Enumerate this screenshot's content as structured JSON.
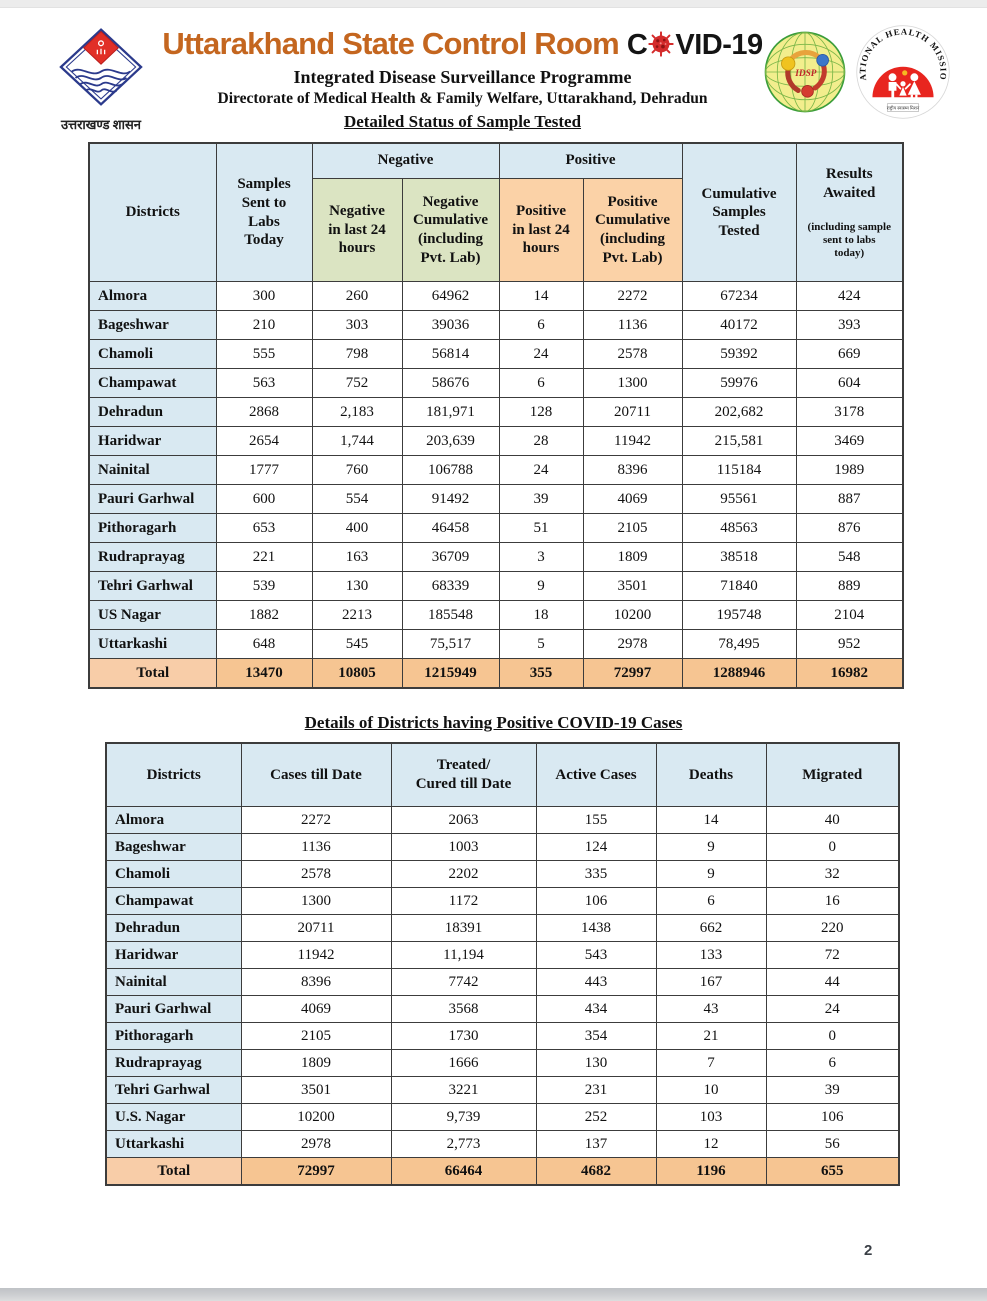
{
  "colors": {
    "title_orange": "#c4661f",
    "header_blue": "#d9e9f2",
    "header_green": "#dbe4c2",
    "header_peach": "#fbd2a7",
    "total_peach": "#f6c592",
    "total_label_peach": "#f8cda8",
    "virus_red": "#d42b2b",
    "nhm_red": "#e8251f",
    "emblem_blue": "#2b3a8c",
    "emblem_red": "#e12f27",
    "idsp_yellow_green": "#f2ee8d"
  },
  "header": {
    "title_main": "Uttarakhand State Control Room",
    "covid_prefix": "C",
    "covid_suffix": "VID-19",
    "subtitle1": "Integrated Disease Surveillance Programme",
    "subtitle2": "Directorate of Medical Health & Family Welfare, Uttarakhand, Dehradun",
    "left_logo_caption": "उत्तराखण्ड शासन",
    "idsp_label": "IDSP",
    "nhm_arc_text": "NATIONAL HEALTH MISSION",
    "nhm_bottom_text": "राष्ट्रीय स्वास्थ्य मिशन"
  },
  "sample_table": {
    "section_title": "Detailed Status of Sample Tested",
    "columns": {
      "districts": "Districts",
      "samples_sent": "Samples\nSent to\nLabs\nToday",
      "negative_group": "Negative",
      "negative_24h": "Negative\nin last 24\nhours",
      "negative_cum": "Negative\nCumulative\n(including\nPvt. Lab)",
      "positive_group": "Positive",
      "positive_24h": "Positive\nin last 24\nhours",
      "positive_cum": "Positive\nCumulative\n(including\nPvt. Lab)",
      "cumulative_tested": "Cumulative\nSamples\nTested",
      "results_awaited": "Results\nAwaited",
      "results_awaited_note": "(including sample\nsent to labs\ntoday)"
    },
    "rows": [
      {
        "district": "Almora",
        "values": [
          "300",
          "260",
          "64962",
          "14",
          "2272",
          "67234",
          "424"
        ]
      },
      {
        "district": "Bageshwar",
        "values": [
          "210",
          "303",
          "39036",
          "6",
          "1136",
          "40172",
          "393"
        ]
      },
      {
        "district": "Chamoli",
        "values": [
          "555",
          "798",
          "56814",
          "24",
          "2578",
          "59392",
          "669"
        ]
      },
      {
        "district": "Champawat",
        "values": [
          "563",
          "752",
          "58676",
          "6",
          "1300",
          "59976",
          "604"
        ]
      },
      {
        "district": "Dehradun",
        "values": [
          "2868",
          "2,183",
          "181,971",
          "128",
          "20711",
          "202,682",
          "3178"
        ]
      },
      {
        "district": "Haridwar",
        "values": [
          "2654",
          "1,744",
          "203,639",
          "28",
          "11942",
          "215,581",
          "3469"
        ]
      },
      {
        "district": "Nainital",
        "values": [
          "1777",
          "760",
          "106788",
          "24",
          "8396",
          "115184",
          "1989"
        ]
      },
      {
        "district": "Pauri Garhwal",
        "values": [
          "600",
          "554",
          "91492",
          "39",
          "4069",
          "95561",
          "887"
        ]
      },
      {
        "district": "Pithoragarh",
        "values": [
          "653",
          "400",
          "46458",
          "51",
          "2105",
          "48563",
          "876"
        ]
      },
      {
        "district": "Rudraprayag",
        "values": [
          "221",
          "163",
          "36709",
          "3",
          "1809",
          "38518",
          "548"
        ]
      },
      {
        "district": "Tehri Garhwal",
        "values": [
          "539",
          "130",
          "68339",
          "9",
          "3501",
          "71840",
          "889"
        ]
      },
      {
        "district": "US Nagar",
        "values": [
          "1882",
          "2213",
          "185548",
          "18",
          "10200",
          "195748",
          "2104"
        ]
      },
      {
        "district": "Uttarkashi",
        "values": [
          "648",
          "545",
          "75,517",
          "5",
          "2978",
          "78,495",
          "952"
        ]
      }
    ],
    "total": {
      "label": "Total",
      "values": [
        "13470",
        "10805",
        "1215949",
        "355",
        "72997",
        "1288946",
        "16982"
      ]
    }
  },
  "positive_table": {
    "title": "Details of Districts having Positive COVID-19 Cases",
    "columns": [
      "Districts",
      "Cases till Date",
      "Treated/\nCured till Date",
      "Active Cases",
      "Deaths",
      "Migrated"
    ],
    "rows": [
      {
        "district": "Almora",
        "values": [
          "2272",
          "2063",
          "155",
          "14",
          "40"
        ]
      },
      {
        "district": "Bageshwar",
        "values": [
          "1136",
          "1003",
          "124",
          "9",
          "0"
        ]
      },
      {
        "district": "Chamoli",
        "values": [
          "2578",
          "2202",
          "335",
          "9",
          "32"
        ]
      },
      {
        "district": "Champawat",
        "values": [
          "1300",
          "1172",
          "106",
          "6",
          "16"
        ]
      },
      {
        "district": "Dehradun",
        "values": [
          "20711",
          "18391",
          "1438",
          "662",
          "220"
        ]
      },
      {
        "district": "Haridwar",
        "values": [
          "11942",
          "11,194",
          "543",
          "133",
          "72"
        ]
      },
      {
        "district": "Nainital",
        "values": [
          "8396",
          "7742",
          "443",
          "167",
          "44"
        ]
      },
      {
        "district": "Pauri Garhwal",
        "values": [
          "4069",
          "3568",
          "434",
          "43",
          "24"
        ]
      },
      {
        "district": "Pithoragarh",
        "values": [
          "2105",
          "1730",
          "354",
          "21",
          "0"
        ]
      },
      {
        "district": "Rudraprayag",
        "values": [
          "1809",
          "1666",
          "130",
          "7",
          "6"
        ]
      },
      {
        "district": "Tehri Garhwal",
        "values": [
          "3501",
          "3221",
          "231",
          "10",
          "39"
        ]
      },
      {
        "district": "U.S. Nagar",
        "values": [
          "10200",
          "9,739",
          "252",
          "103",
          "106"
        ]
      },
      {
        "district": "Uttarkashi",
        "values": [
          "2978",
          "2,773",
          "137",
          "12",
          "56"
        ]
      }
    ],
    "total": {
      "label": "Total",
      "values": [
        "72997",
        "66464",
        "4682",
        "1196",
        "655"
      ]
    }
  },
  "footer": {
    "page_number": "2"
  }
}
